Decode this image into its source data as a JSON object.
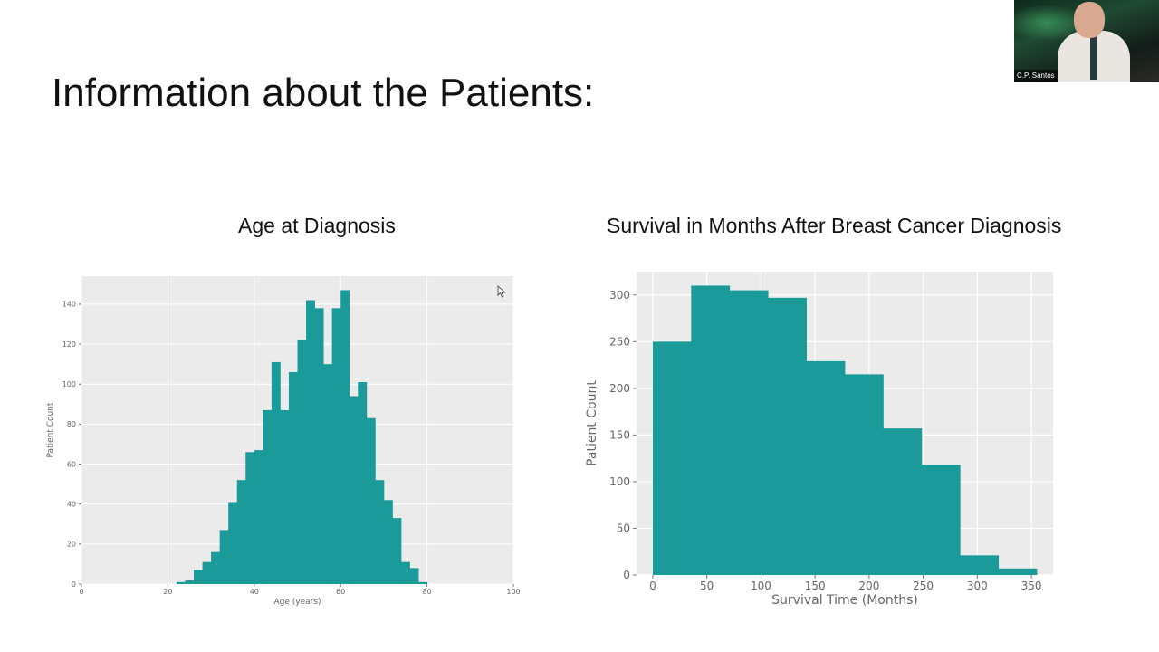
{
  "slide": {
    "title": "Information about the Patients:"
  },
  "video": {
    "participant_name": "C.P. Santos"
  },
  "colors": {
    "bar": "#1b9a9a",
    "panel": "#ebebeb",
    "grid": "#ffffff",
    "tick_text": "#666666"
  },
  "chart_data": [
    {
      "type": "bar",
      "title": "Age at Diagnosis",
      "xlabel": "Age (years)",
      "ylabel": "Patient Count",
      "xlim": [
        0,
        100
      ],
      "ylim": [
        0,
        154
      ],
      "xticks": [
        0,
        20,
        40,
        60,
        80,
        100
      ],
      "yticks": [
        0,
        20,
        40,
        60,
        80,
        100,
        120,
        140
      ],
      "bins": [
        {
          "x0": 22,
          "x1": 24,
          "value": 1
        },
        {
          "x0": 24,
          "x1": 26,
          "value": 2
        },
        {
          "x0": 26,
          "x1": 28,
          "value": 7
        },
        {
          "x0": 28,
          "x1": 30,
          "value": 11
        },
        {
          "x0": 30,
          "x1": 32,
          "value": 16
        },
        {
          "x0": 32,
          "x1": 34,
          "value": 27
        },
        {
          "x0": 34,
          "x1": 36,
          "value": 41
        },
        {
          "x0": 36,
          "x1": 38,
          "value": 52
        },
        {
          "x0": 38,
          "x1": 40,
          "value": 66
        },
        {
          "x0": 40,
          "x1": 42,
          "value": 67
        },
        {
          "x0": 42,
          "x1": 44,
          "value": 87
        },
        {
          "x0": 44,
          "x1": 46,
          "value": 111
        },
        {
          "x0": 46,
          "x1": 48,
          "value": 87
        },
        {
          "x0": 48,
          "x1": 50,
          "value": 106
        },
        {
          "x0": 50,
          "x1": 52,
          "value": 122
        },
        {
          "x0": 52,
          "x1": 54,
          "value": 142
        },
        {
          "x0": 54,
          "x1": 56,
          "value": 138
        },
        {
          "x0": 56,
          "x1": 58,
          "value": 110
        },
        {
          "x0": 58,
          "x1": 60,
          "value": 138
        },
        {
          "x0": 60,
          "x1": 62,
          "value": 147
        },
        {
          "x0": 62,
          "x1": 64,
          "value": 94
        },
        {
          "x0": 64,
          "x1": 66,
          "value": 101
        },
        {
          "x0": 66,
          "x1": 68,
          "value": 83
        },
        {
          "x0": 68,
          "x1": 70,
          "value": 52
        },
        {
          "x0": 70,
          "x1": 72,
          "value": 42
        },
        {
          "x0": 72,
          "x1": 74,
          "value": 33
        },
        {
          "x0": 74,
          "x1": 76,
          "value": 11
        },
        {
          "x0": 76,
          "x1": 78,
          "value": 8
        },
        {
          "x0": 78,
          "x1": 80,
          "value": 1
        }
      ],
      "grid": true
    },
    {
      "type": "bar",
      "title": "Survival in Months After Breast Cancer Diagnosis",
      "xlabel": "Survival Time (Months)",
      "ylabel": "Patient Count",
      "xlim": [
        -15,
        370
      ],
      "ylim": [
        0,
        325
      ],
      "xticks": [
        0,
        50,
        100,
        150,
        200,
        250,
        300,
        350
      ],
      "yticks": [
        0,
        50,
        100,
        150,
        200,
        250,
        300
      ],
      "bins": [
        {
          "x0": 0,
          "x1": 35.5,
          "value": 250
        },
        {
          "x0": 35.5,
          "x1": 71,
          "value": 310
        },
        {
          "x0": 71,
          "x1": 106.5,
          "value": 305
        },
        {
          "x0": 106.5,
          "x1": 142,
          "value": 297
        },
        {
          "x0": 142,
          "x1": 177.5,
          "value": 229
        },
        {
          "x0": 177.5,
          "x1": 213,
          "value": 215
        },
        {
          "x0": 213,
          "x1": 248.5,
          "value": 157
        },
        {
          "x0": 248.5,
          "x1": 284,
          "value": 118
        },
        {
          "x0": 284,
          "x1": 319.5,
          "value": 21
        },
        {
          "x0": 319.5,
          "x1": 355,
          "value": 7
        }
      ],
      "grid": true
    }
  ]
}
